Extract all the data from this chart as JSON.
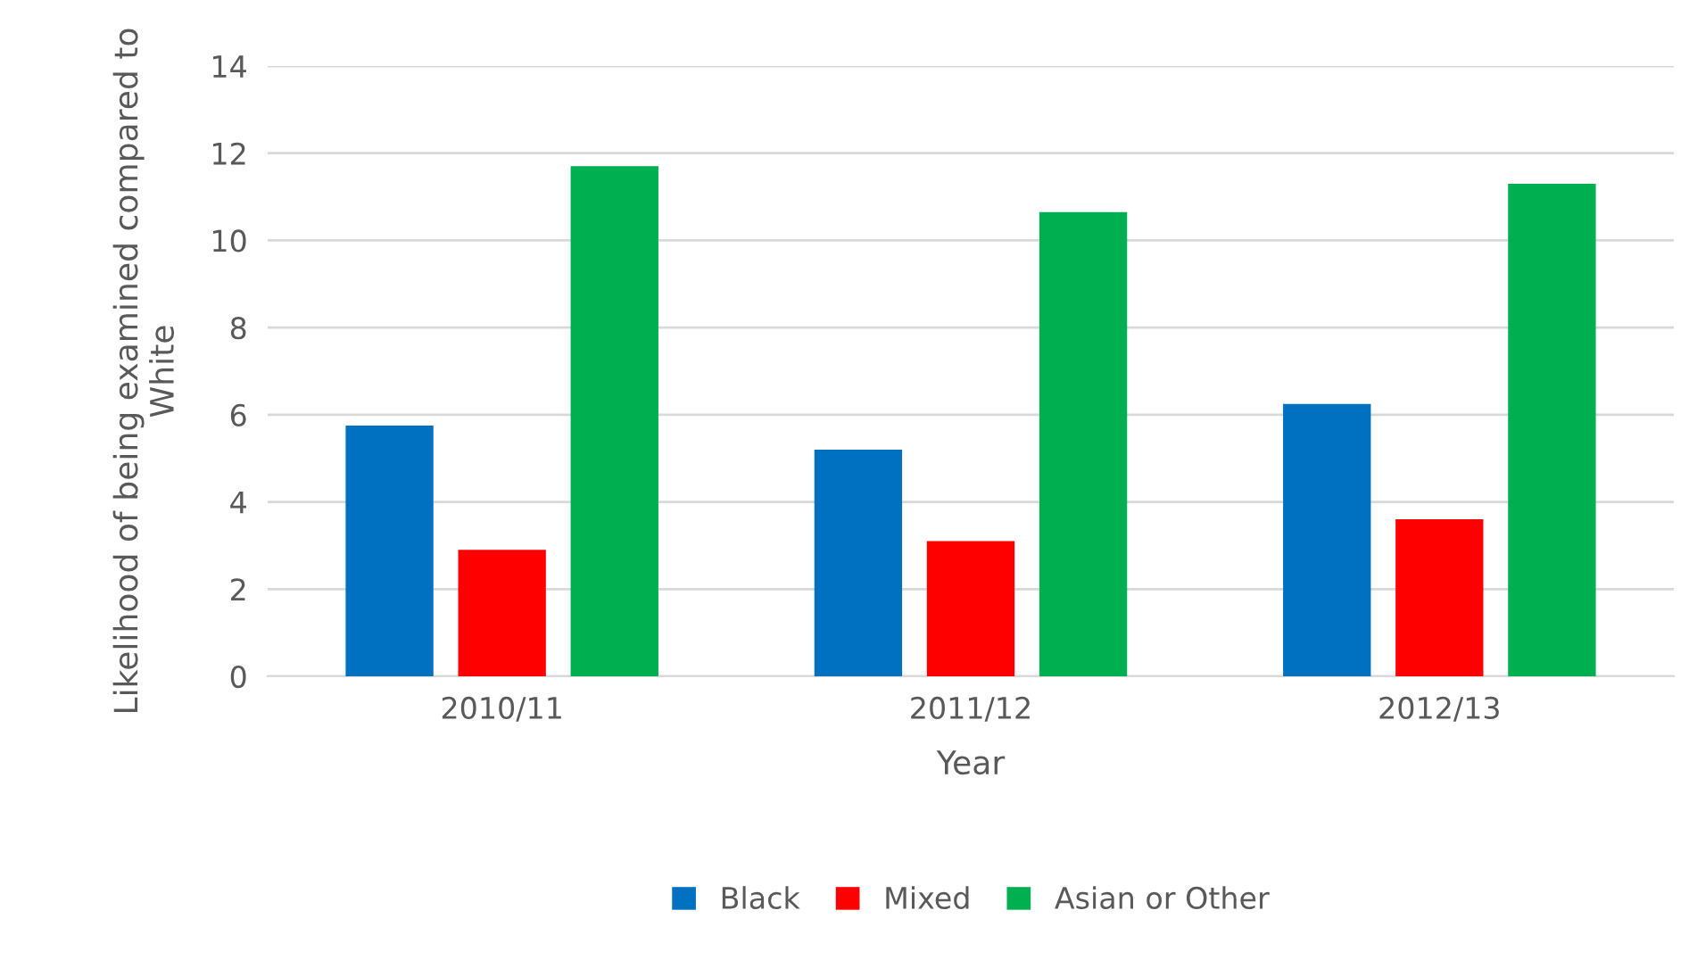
{
  "chart_data": {
    "type": "bar",
    "xlabel": "Year",
    "ylabel": "Likelihood of being examined compared to White",
    "categories": [
      "2010/11",
      "2011/12",
      "2012/13"
    ],
    "series": [
      {
        "name": "Black",
        "color": "#0070c0",
        "values": [
          5.75,
          5.2,
          6.25
        ]
      },
      {
        "name": "Mixed",
        "color": "#ff0000",
        "values": [
          2.9,
          3.1,
          3.6
        ]
      },
      {
        "name": "Asian or Other",
        "color": "#00b050",
        "values": [
          11.7,
          10.65,
          11.3
        ]
      }
    ],
    "ylim": [
      0,
      14
    ],
    "yticks": [
      0,
      2,
      4,
      6,
      8,
      10,
      12,
      14
    ],
    "grid": "y",
    "legend": "bottom"
  }
}
